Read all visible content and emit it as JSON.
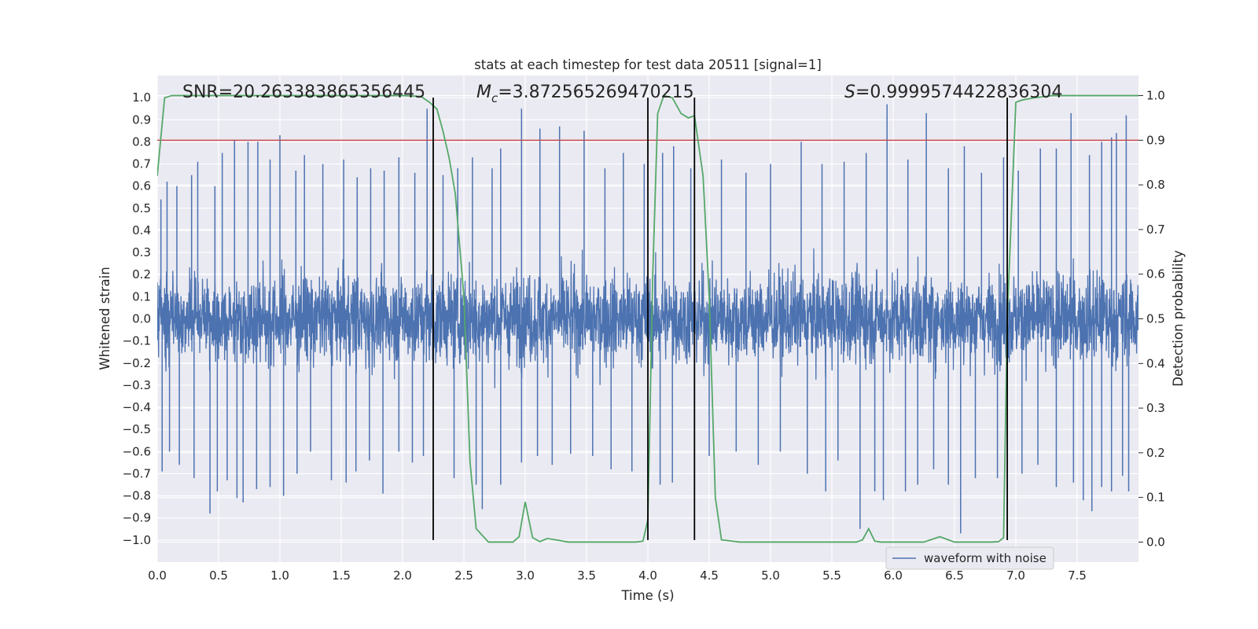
{
  "chart_data": {
    "type": "line",
    "title": "stats at each timestep for test data 20511 [signal=1]",
    "xlabel": "Time (s)",
    "ylabel": "Whitened strain",
    "y2label": "Detection probability",
    "xlim": [
      0.0,
      8.0
    ],
    "ylim": [
      -1.1,
      1.1
    ],
    "y2lim": [
      -0.045,
      1.045
    ],
    "x_ticks": [
      "0.0",
      "0.5",
      "1.0",
      "1.5",
      "2.0",
      "2.5",
      "3.0",
      "3.5",
      "4.0",
      "4.5",
      "5.0",
      "5.5",
      "6.0",
      "6.5",
      "7.0",
      "7.5"
    ],
    "y_ticks": [
      "1.0",
      "0.9",
      "0.8",
      "0.7",
      "0.6",
      "0.5",
      "0.4",
      "0.3",
      "0.2",
      "0.1",
      "0.0",
      "−0.1",
      "−0.2",
      "−0.3",
      "−0.4",
      "−0.5",
      "−0.6",
      "−0.7",
      "−0.8",
      "−0.9",
      "−1.0"
    ],
    "y2_ticks": [
      "1.0",
      "0.9",
      "0.8",
      "0.7",
      "0.6",
      "0.5",
      "0.4",
      "0.3",
      "0.2",
      "0.1",
      "0.0"
    ],
    "annotations": {
      "snr": "SNR=20.263383865356445",
      "mc_symbol": "M",
      "mc_sub": "c",
      "mc_value": "=3.872565269470215",
      "s_symbol": "S",
      "s_value": "=0.9999574422836304"
    },
    "threshold": {
      "y2": 0.9,
      "color": "#c44e52"
    },
    "event_lines_x": [
      2.25,
      4.0,
      4.38,
      6.93
    ],
    "legend": {
      "label": "waveform with noise",
      "position": "lower-right"
    },
    "series": [
      {
        "name": "waveform with noise",
        "axis": "left",
        "color": "#4c72b0",
        "description": "dense whitened strain noise, core band about -0.4 to 0.4",
        "spikes_up": [
          [
            0.03,
            0.54
          ],
          [
            0.08,
            0.62
          ],
          [
            0.16,
            0.6
          ],
          [
            0.28,
            0.65
          ],
          [
            0.33,
            0.71
          ],
          [
            0.47,
            0.6
          ],
          [
            0.53,
            0.75
          ],
          [
            0.63,
            0.81
          ],
          [
            0.74,
            0.8
          ],
          [
            0.82,
            0.8
          ],
          [
            0.92,
            0.72
          ],
          [
            1.0,
            0.83
          ],
          [
            1.13,
            0.67
          ],
          [
            1.2,
            0.74
          ],
          [
            1.35,
            0.7
          ],
          [
            1.52,
            0.72
          ],
          [
            1.63,
            0.64
          ],
          [
            1.74,
            0.68
          ],
          [
            1.85,
            0.67
          ],
          [
            1.97,
            0.73
          ],
          [
            2.1,
            0.66
          ],
          [
            2.2,
            0.95
          ],
          [
            2.33,
            0.65
          ],
          [
            2.45,
            0.68
          ],
          [
            2.57,
            0.73
          ],
          [
            2.73,
            0.68
          ],
          [
            2.8,
            0.77
          ],
          [
            2.97,
            0.95
          ],
          [
            3.12,
            0.86
          ],
          [
            3.28,
            0.87
          ],
          [
            3.48,
            0.85
          ],
          [
            3.65,
            0.68
          ],
          [
            3.8,
            0.75
          ],
          [
            3.97,
            0.7
          ],
          [
            4.12,
            0.75
          ],
          [
            4.21,
            0.78
          ],
          [
            4.35,
            0.68
          ],
          [
            4.6,
            0.72
          ],
          [
            4.8,
            0.66
          ],
          [
            5.0,
            0.7
          ],
          [
            5.25,
            0.8
          ],
          [
            5.42,
            0.7
          ],
          [
            5.6,
            0.71
          ],
          [
            5.78,
            0.75
          ],
          [
            5.95,
            0.97
          ],
          [
            6.12,
            0.72
          ],
          [
            6.27,
            0.93
          ],
          [
            6.45,
            0.68
          ],
          [
            6.58,
            0.78
          ],
          [
            6.72,
            0.66
          ],
          [
            6.9,
            0.73
          ],
          [
            7.02,
            0.67
          ],
          [
            7.2,
            0.77
          ],
          [
            7.33,
            0.77
          ],
          [
            7.45,
            0.93
          ],
          [
            7.6,
            0.74
          ],
          [
            7.7,
            0.8
          ],
          [
            7.78,
            0.82
          ],
          [
            7.82,
            0.84
          ],
          [
            7.9,
            0.92
          ]
        ],
        "spikes_down": [
          [
            0.04,
            -0.69
          ],
          [
            0.1,
            -0.6
          ],
          [
            0.18,
            -0.66
          ],
          [
            0.3,
            -0.72
          ],
          [
            0.43,
            -0.88
          ],
          [
            0.49,
            -0.78
          ],
          [
            0.57,
            -0.73
          ],
          [
            0.65,
            -0.81
          ],
          [
            0.7,
            -0.83
          ],
          [
            0.81,
            -0.77
          ],
          [
            0.92,
            -0.76
          ],
          [
            1.03,
            -0.8
          ],
          [
            1.14,
            -0.7
          ],
          [
            1.25,
            -0.6
          ],
          [
            1.42,
            -0.73
          ],
          [
            1.54,
            -0.74
          ],
          [
            1.62,
            -0.69
          ],
          [
            1.73,
            -0.64
          ],
          [
            1.84,
            -0.79
          ],
          [
            1.97,
            -0.6
          ],
          [
            2.08,
            -0.65
          ],
          [
            2.17,
            -0.62
          ],
          [
            2.42,
            -0.72
          ],
          [
            2.6,
            -0.75
          ],
          [
            2.65,
            -0.86
          ],
          [
            2.8,
            -0.75
          ],
          [
            2.97,
            -0.65
          ],
          [
            3.1,
            -0.62
          ],
          [
            3.22,
            -0.66
          ],
          [
            3.37,
            -0.61
          ],
          [
            3.55,
            -0.62
          ],
          [
            3.7,
            -0.68
          ],
          [
            3.87,
            -0.69
          ],
          [
            4.1,
            -0.75
          ],
          [
            4.2,
            -0.74
          ],
          [
            4.38,
            -0.78
          ],
          [
            4.5,
            -0.62
          ],
          [
            4.72,
            -0.6
          ],
          [
            4.9,
            -0.66
          ],
          [
            5.08,
            -0.6
          ],
          [
            5.3,
            -0.7
          ],
          [
            5.45,
            -0.78
          ],
          [
            5.55,
            -0.64
          ],
          [
            5.73,
            -0.95
          ],
          [
            5.85,
            -0.78
          ],
          [
            5.92,
            -0.82
          ],
          [
            6.1,
            -0.78
          ],
          [
            6.2,
            -0.75
          ],
          [
            6.33,
            -0.68
          ],
          [
            6.45,
            -0.75
          ],
          [
            6.55,
            -0.97
          ],
          [
            6.67,
            -0.72
          ],
          [
            6.85,
            -0.72
          ],
          [
            7.05,
            -0.7
          ],
          [
            7.18,
            -0.66
          ],
          [
            7.33,
            -0.76
          ],
          [
            7.47,
            -0.74
          ],
          [
            7.55,
            -0.82
          ],
          [
            7.62,
            -0.87
          ],
          [
            7.7,
            -0.76
          ],
          [
            7.78,
            -0.78
          ],
          [
            7.87,
            -0.71
          ],
          [
            7.92,
            -0.78
          ]
        ]
      },
      {
        "name": "detection probability",
        "axis": "right",
        "color": "#55a868",
        "x": [
          0.0,
          0.06,
          0.12,
          0.3,
          0.6,
          1.0,
          1.5,
          2.0,
          2.15,
          2.22,
          2.28,
          2.33,
          2.38,
          2.43,
          2.5,
          2.55,
          2.6,
          2.7,
          2.85,
          2.9,
          2.95,
          3.0,
          3.06,
          3.12,
          3.18,
          3.25,
          3.35,
          3.5,
          3.7,
          3.9,
          3.96,
          4.0,
          4.04,
          4.08,
          4.13,
          4.2,
          4.27,
          4.33,
          4.38,
          4.45,
          4.5,
          4.55,
          4.6,
          4.75,
          5.0,
          5.3,
          5.6,
          5.7,
          5.75,
          5.8,
          5.85,
          5.9,
          6.0,
          6.25,
          6.38,
          6.5,
          6.6,
          6.8,
          6.86,
          6.9,
          6.93,
          7.0,
          7.05,
          7.15,
          7.3,
          7.5,
          8.0
        ],
        "values": [
          0.82,
          0.995,
          1.0,
          1.0,
          1.0,
          1.0,
          1.0,
          1.0,
          0.998,
          0.985,
          0.97,
          0.92,
          0.86,
          0.78,
          0.55,
          0.18,
          0.03,
          0.0,
          0.0,
          0.0,
          0.012,
          0.09,
          0.01,
          0.001,
          0.008,
          0.005,
          0.0,
          0.0,
          0.0,
          0.0,
          0.002,
          0.05,
          0.6,
          0.96,
          1.0,
          0.995,
          0.96,
          0.95,
          0.955,
          0.82,
          0.55,
          0.1,
          0.005,
          0.0,
          0.0,
          0.0,
          0.0,
          0.0,
          0.005,
          0.03,
          0.002,
          0.0,
          0.0,
          0.0,
          0.012,
          0.0,
          0.0,
          0.0,
          0.001,
          0.01,
          0.5,
          0.985,
          0.99,
          0.995,
          1.0,
          1.0,
          1.0
        ]
      }
    ]
  }
}
